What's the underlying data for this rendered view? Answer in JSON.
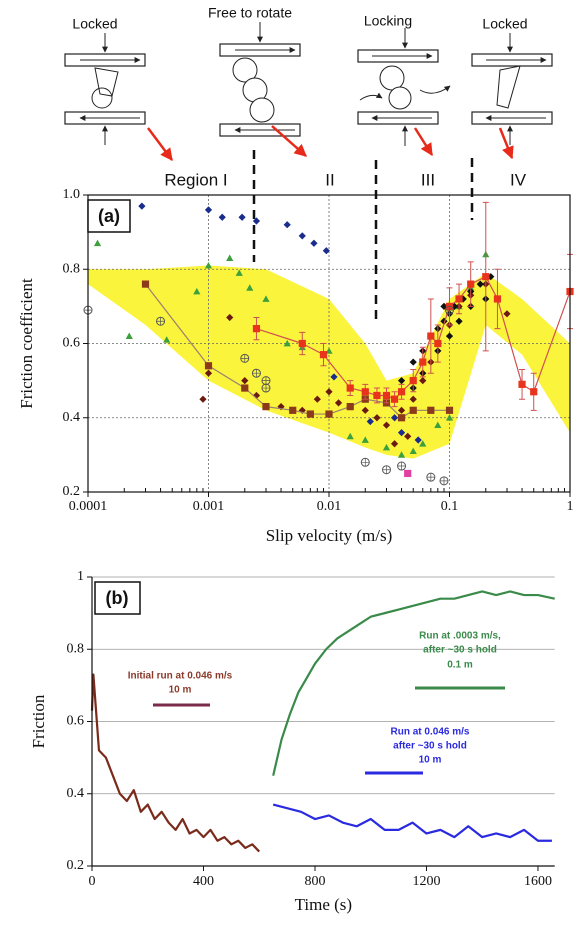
{
  "schematic": {
    "labels": [
      "Locked",
      "Free to rotate",
      "Locking",
      "Locked"
    ]
  },
  "chart_data": [
    {
      "type": "scatter",
      "panel_label": "(a)",
      "x_label": "Slip velocity (m/s)",
      "y_label": "Friction coefficient",
      "region_labels": [
        "Region I",
        "II",
        "III",
        "IV"
      ],
      "xlog": true,
      "xlim": [
        0.0001,
        1
      ],
      "ylim": [
        0.2,
        1.0
      ],
      "xticks": [
        0.0001,
        0.001,
        0.01,
        0.1,
        1
      ],
      "yticks": [
        0.2,
        0.4,
        0.6,
        0.8,
        {
          "value": 1.0,
          "label": "1.0"
        }
      ],
      "grid": "both",
      "band": {
        "color": "#fbf43c",
        "x": [
          0.0001,
          0.0003,
          0.001,
          0.003,
          0.01,
          0.02,
          0.03,
          0.05,
          0.1,
          0.2,
          0.4,
          1
        ],
        "upper": [
          0.8,
          0.8,
          0.81,
          0.8,
          0.72,
          0.6,
          0.5,
          0.52,
          0.72,
          0.79,
          0.72,
          0.6
        ],
        "lower": [
          0.76,
          0.65,
          0.5,
          0.42,
          0.36,
          0.32,
          0.3,
          0.29,
          0.33,
          0.65,
          0.57,
          0.36
        ]
      },
      "series": [
        {
          "color": "#1a2c8c",
          "marker": "diamond",
          "x": [
            0.00028,
            0.001,
            0.0013,
            0.0019,
            0.0025,
            0.0045,
            0.006,
            0.0075,
            0.0095,
            0.011,
            0.022,
            0.035,
            0.04,
            0.055
          ],
          "values": [
            0.97,
            0.96,
            0.94,
            0.94,
            0.93,
            0.92,
            0.89,
            0.87,
            0.85,
            0.51,
            0.39,
            0.4,
            0.36,
            0.34
          ]
        },
        {
          "color": "#3ca03c",
          "marker": "triangle",
          "x": [
            0.00012,
            0.00022,
            0.00045,
            0.0008,
            0.001,
            0.0015,
            0.0018,
            0.0022,
            0.003,
            0.0045,
            0.006,
            0.01,
            0.015,
            0.02,
            0.03,
            0.04,
            0.05,
            0.06,
            0.08,
            0.1,
            0.12,
            0.15,
            0.2
          ],
          "values": [
            0.87,
            0.62,
            0.61,
            0.74,
            0.81,
            0.83,
            0.79,
            0.75,
            0.72,
            0.6,
            0.59,
            0.58,
            0.35,
            0.34,
            0.32,
            0.3,
            0.31,
            0.33,
            0.38,
            0.4,
            0.7,
            0.75,
            0.84
          ]
        },
        {
          "color": "#6b1a10",
          "marker": "diamond",
          "x": [
            0.0009,
            0.001,
            0.0015,
            0.002,
            0.0025,
            0.004,
            0.006,
            0.008,
            0.01,
            0.012,
            0.015,
            0.02,
            0.025,
            0.03,
            0.035,
            0.04,
            0.045,
            0.05,
            0.06,
            0.07,
            0.08,
            0.1,
            0.12,
            0.15,
            0.2,
            0.25,
            0.3
          ],
          "values": [
            0.45,
            0.52,
            0.67,
            0.5,
            0.46,
            0.43,
            0.42,
            0.45,
            0.47,
            0.44,
            0.43,
            0.42,
            0.4,
            0.38,
            0.33,
            0.42,
            0.35,
            0.45,
            0.5,
            0.55,
            0.6,
            0.65,
            0.7,
            0.73,
            0.76,
            0.72,
            0.68
          ]
        },
        {
          "color": "#111111",
          "marker": "diamond",
          "x": [
            0.03,
            0.04,
            0.05,
            0.05,
            0.06,
            0.06,
            0.07,
            0.08,
            0.08,
            0.09,
            0.09,
            0.1,
            0.1,
            0.11,
            0.12,
            0.13,
            0.15,
            0.15,
            0.18,
            0.2,
            0.22
          ],
          "values": [
            0.46,
            0.5,
            0.55,
            0.48,
            0.58,
            0.52,
            0.62,
            0.64,
            0.58,
            0.66,
            0.7,
            0.68,
            0.62,
            0.7,
            0.66,
            0.72,
            0.74,
            0.7,
            0.76,
            0.72,
            0.78
          ]
        },
        {
          "color": "#8b3a1a",
          "marker": "square",
          "line": "#9a8070",
          "x": [
            0.0003,
            0.001,
            0.002,
            0.003,
            0.005,
            0.007,
            0.01,
            0.015,
            0.02,
            0.03,
            0.04,
            0.05,
            0.07,
            0.1
          ],
          "values": [
            0.76,
            0.54,
            0.48,
            0.43,
            0.42,
            0.41,
            0.41,
            0.43,
            0.45,
            0.44,
            0.4,
            0.42,
            0.42,
            0.42
          ]
        },
        {
          "color": "#e8341c",
          "marker": "square",
          "line": "#d05050",
          "error_color": "#d05050",
          "x": [
            0.0025,
            0.006,
            0.009,
            0.015,
            0.02,
            0.025,
            0.03,
            0.035,
            0.04,
            0.05,
            0.06,
            0.07,
            0.08,
            0.1,
            0.12,
            0.15,
            0.2,
            0.25,
            0.4,
            0.5,
            1
          ],
          "values": [
            0.64,
            0.6,
            0.57,
            0.48,
            0.47,
            0.46,
            0.46,
            0.45,
            0.47,
            0.5,
            0.55,
            0.62,
            0.6,
            0.7,
            0.72,
            0.76,
            0.78,
            0.72,
            0.49,
            0.47,
            0.74
          ],
          "errors": [
            0.03,
            0.03,
            0.03,
            0.02,
            0.02,
            0.02,
            0.02,
            0.02,
            0.02,
            0.03,
            0.04,
            0.1,
            0.05,
            0.05,
            0.04,
            0.06,
            0.2,
            0.08,
            0.04,
            0.05,
            0.1
          ]
        },
        {
          "color": "#555555",
          "marker": "circle-open",
          "x": [
            0.0001,
            0.0004,
            0.002,
            0.0025,
            0.003,
            0.003,
            0.02,
            0.03,
            0.04,
            0.07,
            0.09,
            0.1
          ],
          "values": [
            0.69,
            0.66,
            0.56,
            0.52,
            0.5,
            0.48,
            0.28,
            0.26,
            0.27,
            0.24,
            0.23,
            0.69
          ]
        },
        {
          "color": "#e040a0",
          "marker": "square",
          "x": [
            0.045
          ],
          "values": [
            0.25
          ]
        }
      ]
    },
    {
      "type": "line",
      "panel_label": "(b)",
      "x_label": "Time (s)",
      "y_label": "Friction",
      "annotations": [
        "Initial run at 0.046 m/s",
        "10 m",
        "Run at .0003 m/s,",
        "after ~30 s hold",
        "0.1 m",
        "Run at 0.046 m/s",
        "after ~30 s hold",
        "10 m"
      ],
      "xlim": [
        0,
        1660
      ],
      "ylim": [
        0.2,
        1
      ],
      "xticks": [
        0,
        400,
        800,
        1200,
        1600
      ],
      "yticks": [
        0.2,
        0.4,
        0.6,
        0.8,
        1
      ],
      "grid": "y",
      "series": [
        {
          "color": "#7a2a1a",
          "x": [
            0,
            5,
            25,
            50,
            75,
            100,
            125,
            150,
            175,
            200,
            225,
            250,
            275,
            300,
            325,
            350,
            375,
            400,
            425,
            450,
            475,
            500,
            525,
            550,
            575,
            600
          ],
          "values": [
            0.63,
            0.73,
            0.52,
            0.5,
            0.45,
            0.4,
            0.38,
            0.41,
            0.35,
            0.37,
            0.33,
            0.35,
            0.32,
            0.3,
            0.33,
            0.29,
            0.3,
            0.28,
            0.3,
            0.27,
            0.28,
            0.26,
            0.27,
            0.25,
            0.26,
            0.24
          ]
        },
        {
          "color": "#3a8a4a",
          "x": [
            650,
            680,
            710,
            740,
            770,
            800,
            840,
            880,
            920,
            960,
            1000,
            1050,
            1100,
            1150,
            1200,
            1250,
            1300,
            1350,
            1400,
            1450,
            1500,
            1550,
            1600,
            1660
          ],
          "values": [
            0.45,
            0.55,
            0.62,
            0.68,
            0.72,
            0.76,
            0.8,
            0.83,
            0.85,
            0.87,
            0.89,
            0.9,
            0.91,
            0.92,
            0.93,
            0.94,
            0.94,
            0.95,
            0.96,
            0.95,
            0.96,
            0.95,
            0.95,
            0.94
          ]
        },
        {
          "color": "#2a2ae0",
          "x": [
            650,
            700,
            750,
            800,
            850,
            900,
            950,
            1000,
            1050,
            1100,
            1150,
            1200,
            1250,
            1300,
            1350,
            1400,
            1450,
            1500,
            1550,
            1600,
            1650
          ],
          "values": [
            0.37,
            0.36,
            0.35,
            0.33,
            0.34,
            0.32,
            0.31,
            0.33,
            0.3,
            0.3,
            0.32,
            0.29,
            0.3,
            0.28,
            0.31,
            0.28,
            0.29,
            0.28,
            0.3,
            0.27,
            0.27
          ]
        }
      ]
    }
  ]
}
